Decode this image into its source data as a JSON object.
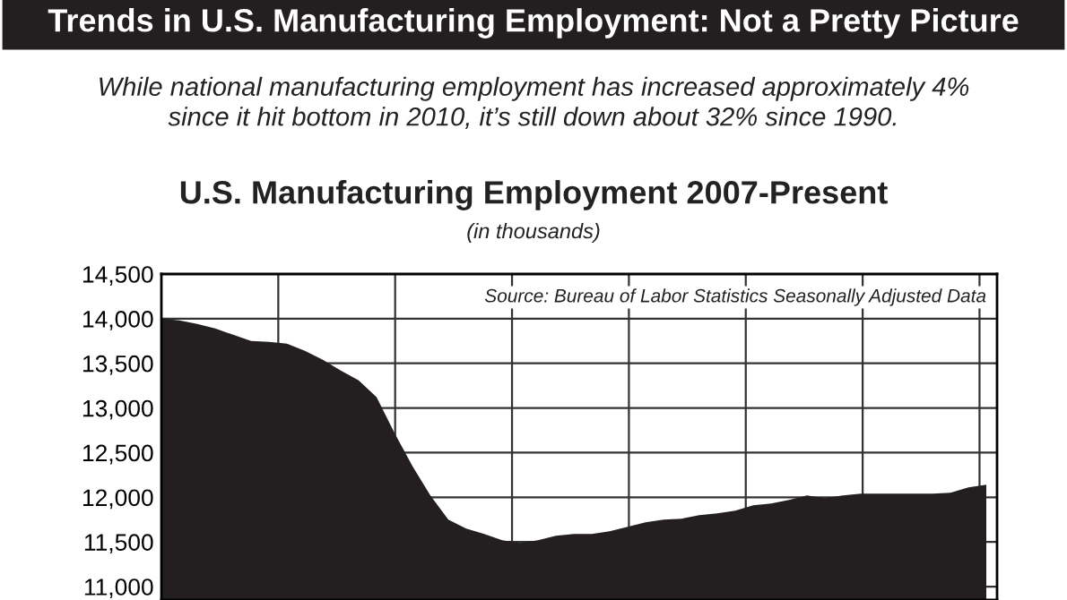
{
  "chart_data": {
    "type": "area",
    "title": "Trends in U.S. Manufacturing Employment: Not a Pretty Picture",
    "subtitle": "While national manufacturing employment has increased approximately 4%\nsince it hit bottom in 2010, it’s still down about 32% since 1990.",
    "annotations": [
      "U.S. Manufacturing Employment 2007-Present",
      "(in thousands)",
      "Source: Bureau of Labor Statistics Seasonally Adjusted Data"
    ],
    "categories": [
      null,
      null,
      null,
      null,
      null,
      null,
      null,
      null,
      null,
      null,
      null,
      null,
      null,
      null,
      null,
      null,
      null,
      null,
      null,
      null,
      null,
      null,
      null,
      null,
      null,
      null,
      null,
      null,
      null,
      null,
      null,
      null,
      null,
      null,
      null,
      null,
      null,
      null,
      null,
      null,
      null,
      null,
      null,
      null,
      null,
      null,
      null
    ],
    "series": [
      {
        "color": "#231f20",
        "values": [
          14000,
          13980,
          13940,
          13890,
          13820,
          13750,
          13740,
          13720,
          13640,
          13540,
          13420,
          13310,
          13120,
          12720,
          12350,
          12020,
          11750,
          11650,
          11590,
          11520,
          11490,
          11520,
          11570,
          11590,
          11590,
          11620,
          11670,
          11720,
          11750,
          11760,
          11800,
          11820,
          11850,
          11910,
          11930,
          11970,
          12020,
          11990,
          12020,
          12040,
          12040,
          12040,
          12040,
          12040,
          12050,
          12110,
          12140
        ]
      }
    ],
    "ylim": [
      10850,
      14500
    ],
    "yticks": [
      {
        "value": 11000,
        "label": "11,000"
      },
      {
        "value": 11500,
        "label": "11,500"
      },
      {
        "value": 12000,
        "label": "12,000"
      },
      {
        "value": 12500,
        "label": "12,500"
      },
      {
        "value": 13000,
        "label": "13,000"
      },
      {
        "value": 13500,
        "label": "13,500"
      },
      {
        "value": 14000,
        "label": "14,000"
      },
      {
        "value": 14500,
        "label": "14,500"
      }
    ],
    "grid": true,
    "legend": false
  }
}
